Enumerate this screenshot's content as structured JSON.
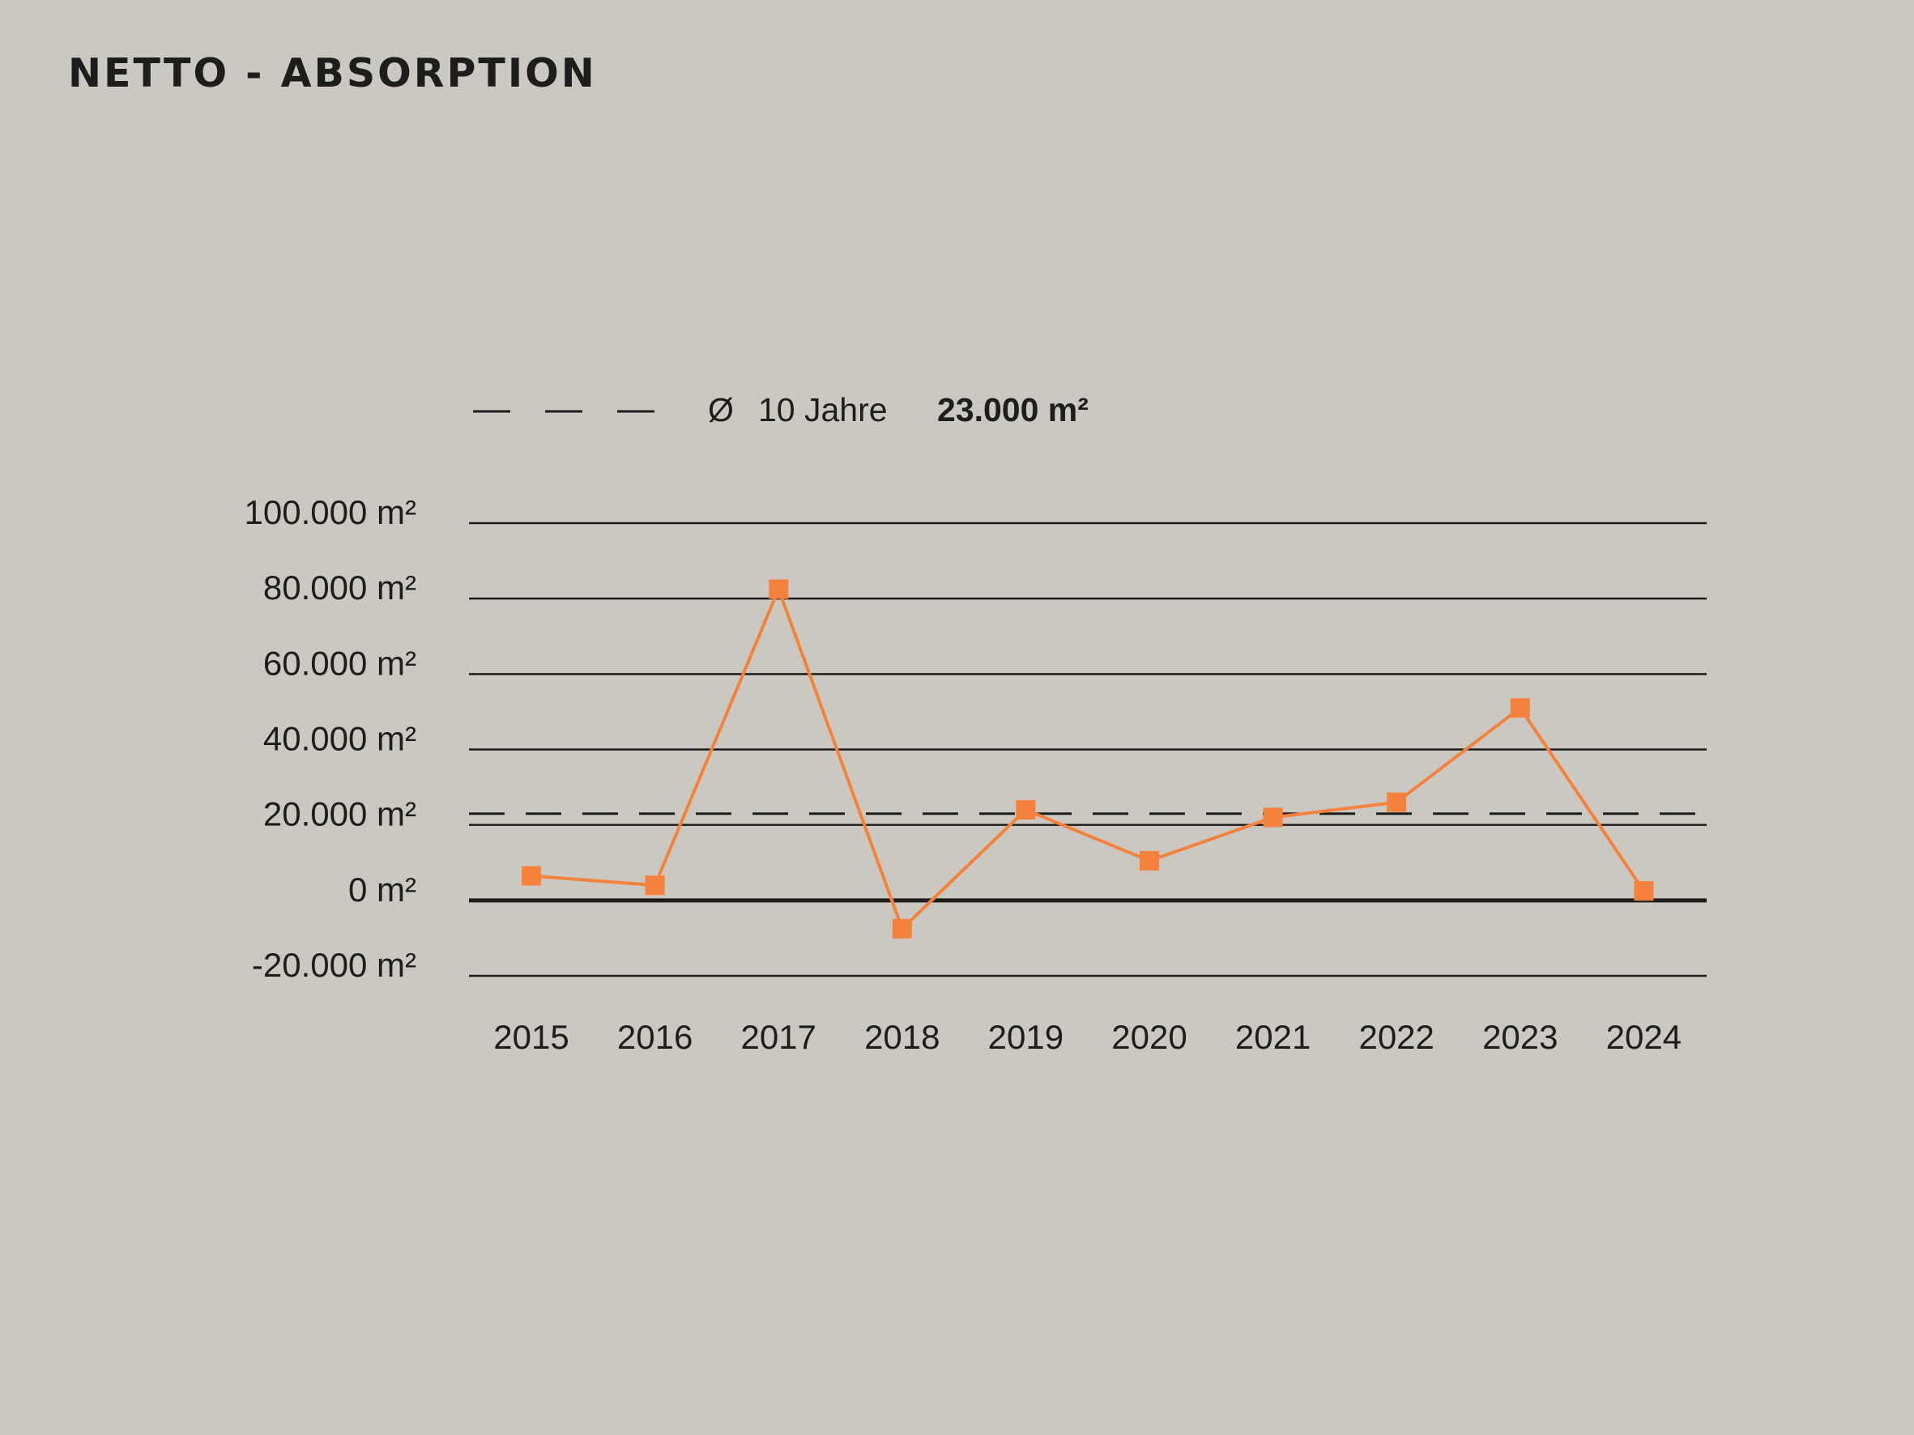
{
  "header": {
    "title": "NETTO - ABSORPTION"
  },
  "legend": {
    "symbol": "Ø",
    "label": "10 Jahre",
    "value": "23.000 m²"
  },
  "colors": {
    "background": "#cbc8c1",
    "series": "#f5823c",
    "grid": "#1d1d1b",
    "text": "#1d1d1b"
  },
  "chart_data": {
    "type": "line",
    "title": "NETTO - ABSORPTION",
    "xlabel": "",
    "ylabel": "",
    "categories": [
      "2015",
      "2016",
      "2017",
      "2018",
      "2019",
      "2020",
      "2021",
      "2022",
      "2023",
      "2024"
    ],
    "series": [
      {
        "values": [
          6500,
          4000,
          82500,
          -7500,
          24000,
          10500,
          22000,
          26000,
          51000,
          2500
        ],
        "marker": "square",
        "color": "#f5823c"
      }
    ],
    "reference_line": {
      "label": "Ø 10 Jahre",
      "value": 23000,
      "value_label": "23.000 m²",
      "style": "dashed"
    },
    "ylim": [
      -20000,
      100000
    ],
    "yticks": [
      100000,
      80000,
      60000,
      40000,
      20000,
      0,
      -20000
    ],
    "ytick_labels": [
      "100.000 m²",
      "80.000 m²",
      "60.000 m²",
      "40.000 m²",
      "20.000 m²",
      "0 m²",
      "-20.000 m²"
    ],
    "grid": true,
    "legend_position": "top"
  }
}
